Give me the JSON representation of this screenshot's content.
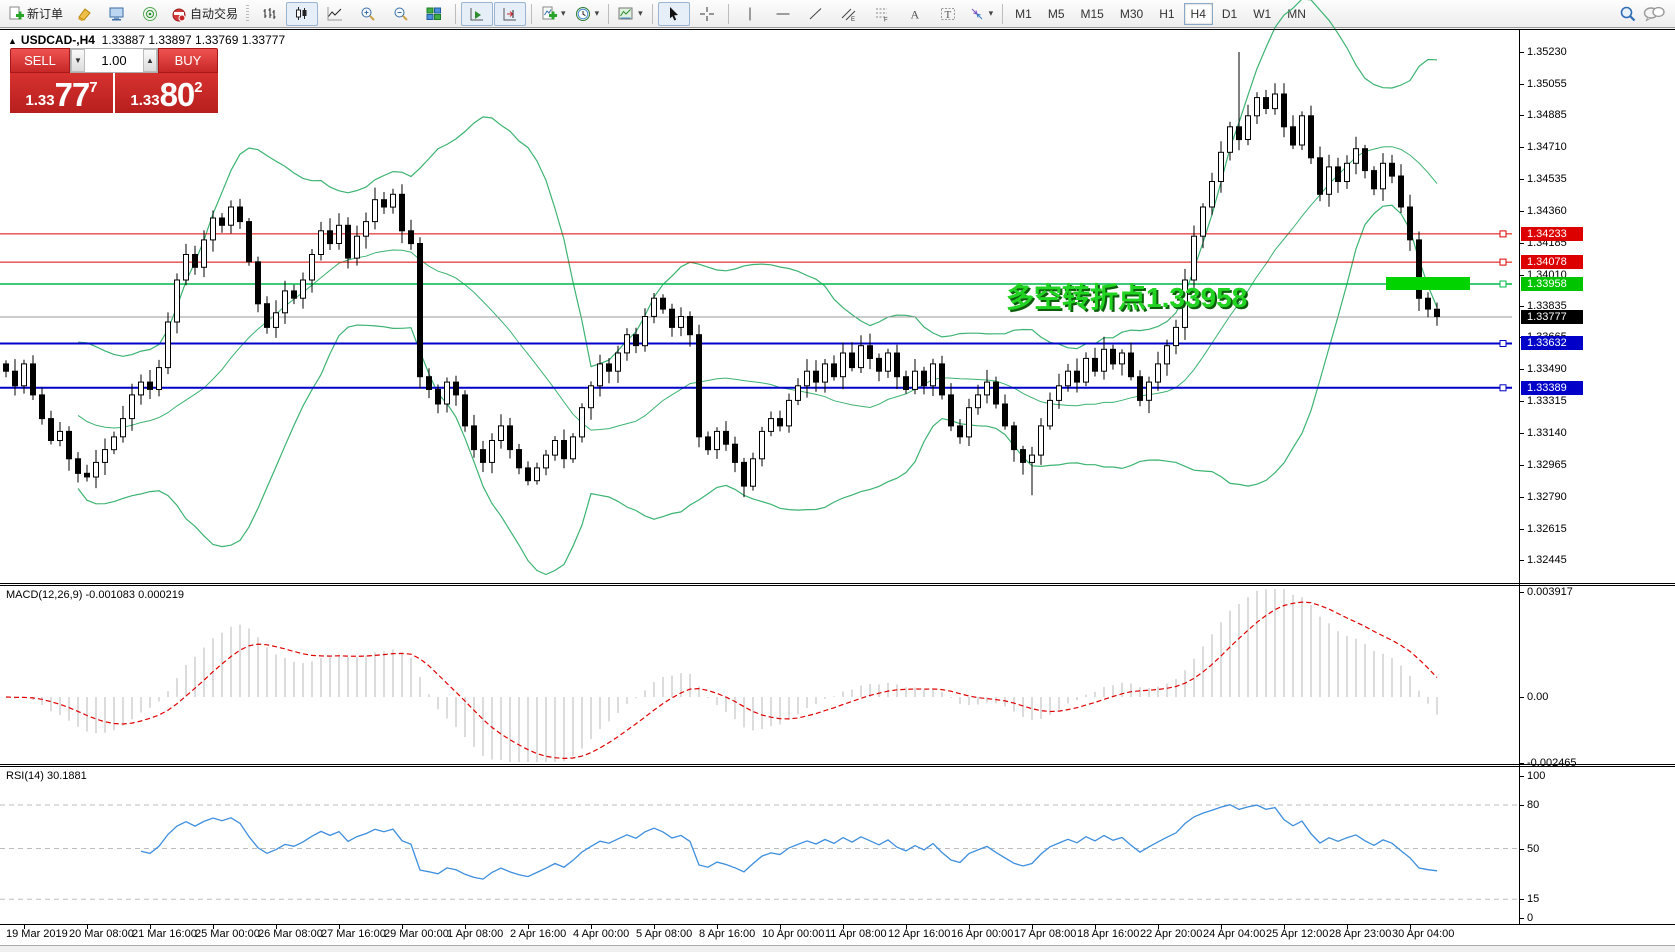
{
  "toolbar": {
    "new_order_label": "新订单",
    "autotrade_label": "自动交易",
    "timeframes": [
      "M1",
      "M5",
      "M15",
      "M30",
      "H1",
      "H4",
      "D1",
      "W1",
      "MN"
    ],
    "active_timeframe": "H4"
  },
  "chart_header": {
    "collapse_icon": "▲",
    "title": "USDCAD-,H4",
    "ohlc": "1.33887 1.33897 1.33769 1.33777"
  },
  "trade_panel": {
    "sell_label": "SELL",
    "buy_label": "BUY",
    "volume": "1.00",
    "sell_price": {
      "base": "1.33",
      "big": "77",
      "sup": "7"
    },
    "buy_price": {
      "base": "1.33",
      "big": "80",
      "sup": "2"
    }
  },
  "annotation_text": "多空转折点1.33958",
  "price_scale": {
    "ticks": [
      "1.35230",
      "1.35055",
      "1.34885",
      "1.34710",
      "1.34535",
      "1.34360",
      "1.34185",
      "1.34010",
      "1.33835",
      "1.33665",
      "1.33490",
      "1.33315",
      "1.33140",
      "1.32965",
      "1.32790",
      "1.32615",
      "1.32445"
    ]
  },
  "macd_panel": {
    "label": "MACD(12,26,9)",
    "values": "-0.001083 0.000219",
    "scale": [
      {
        "label": "0.003917",
        "value": 0.003917
      },
      {
        "label": "0.00",
        "value": 0
      },
      {
        "label": "-0.002465",
        "value": -0.002465
      }
    ]
  },
  "rsi_panel": {
    "label": "RSI(14)",
    "value": "30.1881",
    "levels": [
      {
        "label": "100",
        "value": 100,
        "dashed": false
      },
      {
        "label": "80",
        "value": 80,
        "dashed": true
      },
      {
        "label": "50",
        "value": 50,
        "dashed": true
      },
      {
        "label": "15",
        "value": 15,
        "dashed": true
      },
      {
        "label": "0",
        "value": 0,
        "dashed": false
      }
    ]
  },
  "time_axis": [
    "19 Mar 2019",
    "20 Mar 08:00",
    "21 Mar 16:00",
    "25 Mar 00:00",
    "26 Mar 08:00",
    "27 Mar 16:00",
    "29 Mar 00:00",
    "1 Apr 08:00",
    "2 Apr 16:00",
    "4 Apr 00:00",
    "5 Apr 08:00",
    "8 Apr 16:00",
    "10 Apr 00:00",
    "11 Apr 08:00",
    "12 Apr 16:00",
    "16 Apr 00:00",
    "17 Apr 08:00",
    "18 Apr 16:00",
    "22 Apr 20:00",
    "24 Apr 04:00",
    "25 Apr 12:00",
    "28 Apr 23:00",
    "30 Apr 04:00"
  ],
  "chart_data": {
    "type": "candlestick",
    "symbol": "USDCAD",
    "timeframe": "H4",
    "ylim": [
      1.324,
      1.3532
    ],
    "first_open": 1.3352,
    "closes": [
      1.3348,
      1.334,
      1.3352,
      1.3335,
      1.3322,
      1.331,
      1.3315,
      1.33,
      1.3292,
      1.329,
      1.3298,
      1.3305,
      1.3312,
      1.3322,
      1.3335,
      1.3342,
      1.3338,
      1.335,
      1.3375,
      1.3398,
      1.3412,
      1.3405,
      1.342,
      1.3432,
      1.3428,
      1.3438,
      1.343,
      1.3408,
      1.3385,
      1.3372,
      1.338,
      1.3392,
      1.3388,
      1.3398,
      1.3412,
      1.3425,
      1.3418,
      1.3428,
      1.341,
      1.3422,
      1.343,
      1.3442,
      1.3438,
      1.3445,
      1.3425,
      1.3418,
      1.3345,
      1.3338,
      1.333,
      1.3342,
      1.3335,
      1.3318,
      1.3305,
      1.3298,
      1.331,
      1.3318,
      1.3305,
      1.3295,
      1.3288,
      1.3295,
      1.3302,
      1.331,
      1.33,
      1.3312,
      1.3328,
      1.334,
      1.3352,
      1.3348,
      1.3358,
      1.3368,
      1.3362,
      1.3378,
      1.3388,
      1.3382,
      1.3372,
      1.3378,
      1.3368,
      1.3312,
      1.3305,
      1.3315,
      1.3308,
      1.3298,
      1.3285,
      1.33,
      1.3315,
      1.3322,
      1.3318,
      1.3332,
      1.334,
      1.3348,
      1.3342,
      1.3352,
      1.3345,
      1.3358,
      1.335,
      1.3362,
      1.3355,
      1.3348,
      1.3358,
      1.3345,
      1.3338,
      1.3348,
      1.334,
      1.3352,
      1.3335,
      1.3318,
      1.3312,
      1.3328,
      1.3335,
      1.3342,
      1.333,
      1.3318,
      1.3305,
      1.3298,
      1.3302,
      1.3318,
      1.3332,
      1.334,
      1.3348,
      1.3342,
      1.3355,
      1.3348,
      1.336,
      1.3352,
      1.3358,
      1.3345,
      1.3332,
      1.3342,
      1.3352,
      1.3362,
      1.3372,
      1.3398,
      1.3422,
      1.3438,
      1.3452,
      1.3468,
      1.3482,
      1.3475,
      1.3488,
      1.3498,
      1.3492,
      1.35,
      1.3482,
      1.3472,
      1.3488,
      1.3465,
      1.3445,
      1.346,
      1.3452,
      1.3462,
      1.347,
      1.3458,
      1.3448,
      1.3462,
      1.3455,
      1.3438,
      1.342,
      1.3388,
      1.3382,
      1.3378
    ],
    "wick_overrides": {
      "8": {
        "low": 1.3287
      },
      "82": {
        "low": 1.3279
      },
      "114": {
        "low": 1.328
      },
      "137": {
        "high": 1.3523
      },
      "157": {
        "low": 1.3381
      }
    },
    "indicators": [
      {
        "name": "Bollinger Bands",
        "period": 20,
        "deviation": 2,
        "color": "#3cb371"
      },
      {
        "name": "MACD",
        "fast": 12,
        "slow": 26,
        "signal": 9,
        "histogram_color": "#c4c4c4",
        "signal_color": "#e00000"
      },
      {
        "name": "RSI",
        "period": 14,
        "color": "#3d8ede"
      }
    ],
    "horizontal_lines": [
      {
        "price": 1.34233,
        "label": "1.34233",
        "color": "#dd0000",
        "width": 1
      },
      {
        "price": 1.34078,
        "label": "1.34078",
        "color": "#dd0000",
        "width": 1
      },
      {
        "price": 1.33958,
        "label": "1.33958",
        "color": "#00b94a",
        "label_bg": "#00c400",
        "width": 1.5
      },
      {
        "price": 1.33777,
        "label": "1.33777",
        "color": "#999999",
        "label_bg": "#000000",
        "width": 1,
        "current": true
      },
      {
        "price": 1.33632,
        "label": "1.33632",
        "color": "#0000c8",
        "width": 2
      },
      {
        "price": 1.33389,
        "label": "1.33389",
        "color": "#0000c8",
        "width": 2
      }
    ],
    "highlight_bar_color": "#00d300",
    "candle_up_color": "#ffffff",
    "candle_down_color": "#000000"
  }
}
